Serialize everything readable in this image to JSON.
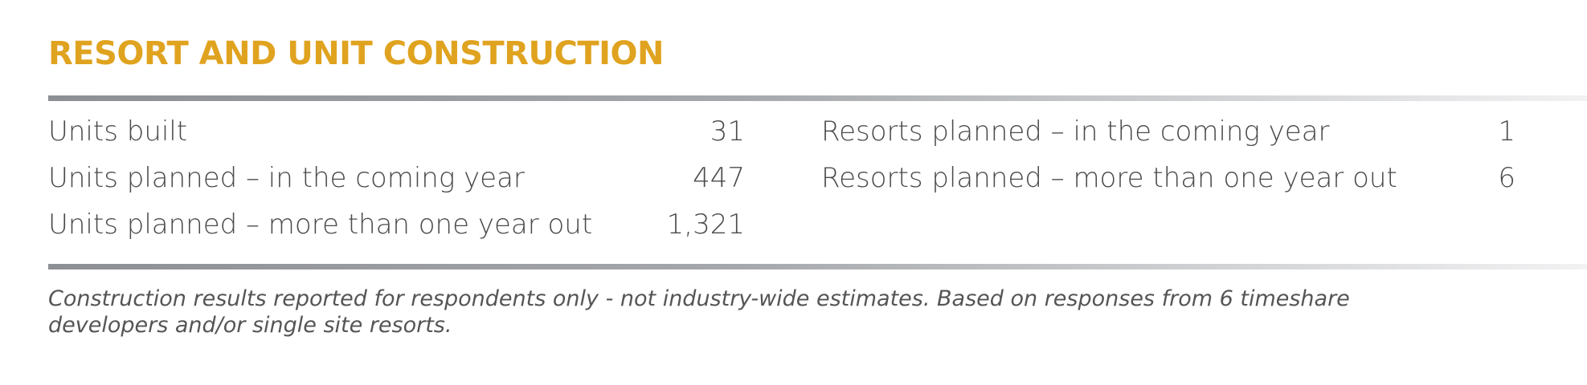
{
  "header": {
    "title": "RESORT AND UNIT CONSTRUCTION"
  },
  "table": {
    "left": [
      [
        "Units built",
        "31"
      ],
      [
        "Units planned – in the coming year",
        "447"
      ],
      [
        "Units planned – more than one year out",
        "1,321"
      ]
    ],
    "right": [
      [
        "Resorts planned – in the coming year",
        "1"
      ],
      [
        "Resorts planned – more than one year out",
        "6"
      ]
    ]
  },
  "footnote": "Construction results reported for respondents only - not industry-wide estimates. Based on responses from 6 timeshare developers and/or single site resorts."
}
